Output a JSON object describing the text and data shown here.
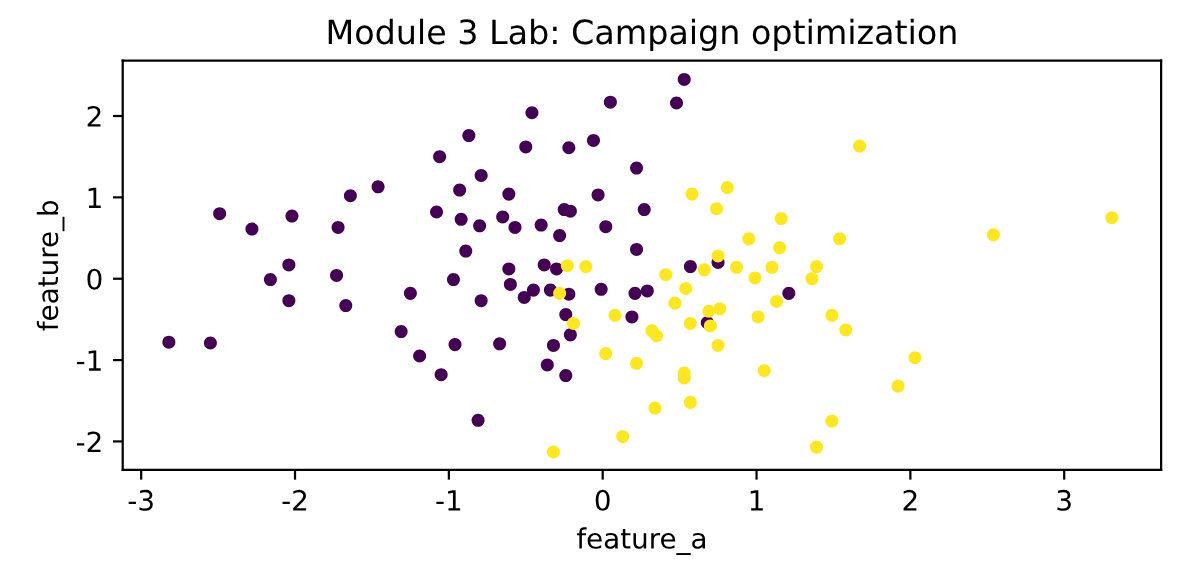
{
  "chart_data": {
    "type": "scatter",
    "title": "Module 3 Lab: Campaign optimization",
    "xlabel": "feature_a",
    "ylabel": "feature_b",
    "xlim": [
      -3.12,
      3.63
    ],
    "ylim": [
      -2.35,
      2.68
    ],
    "xticks": [
      -3,
      -2,
      -1,
      0,
      1,
      2,
      3
    ],
    "yticks": [
      -2,
      -1,
      0,
      1,
      2
    ],
    "marker": "circle",
    "grid": false,
    "series": [
      {
        "color": "#440154",
        "x": [
          -2.82,
          -2.55,
          -2.49,
          -2.28,
          -2.02,
          -2.16,
          -2.04,
          -2.04,
          -1.72,
          -1.64,
          -1.46,
          -1.73,
          -1.67,
          -1.25,
          -1.31,
          -1.19,
          -1.05,
          -0.96,
          -0.81,
          -0.67,
          -0.87,
          -1.06,
          -0.79,
          -0.93,
          -1.08,
          -0.92,
          -0.8,
          -0.89,
          -0.97,
          -0.79,
          0.53,
          0.05,
          0.48,
          -0.46,
          -0.5,
          -0.22,
          -0.06,
          0.22,
          -0.61,
          -0.03,
          -0.65,
          -0.57,
          -0.4,
          -0.25,
          -0.21,
          0.27,
          0.02,
          -0.28,
          0.22,
          -0.61,
          -0.6,
          -0.38,
          -0.3,
          -0.51,
          -0.45,
          -0.34,
          -0.22,
          -0.01,
          0.21,
          0.29,
          0.57,
          0.75,
          1.21,
          -0.24,
          -0.21,
          0.19,
          0.68,
          -0.32,
          -0.36,
          -0.24
        ],
        "values": [
          -0.78,
          -0.79,
          0.8,
          0.61,
          0.77,
          -0.01,
          0.17,
          -0.27,
          0.63,
          1.02,
          1.13,
          0.04,
          -0.33,
          -0.18,
          -0.65,
          -0.95,
          -1.18,
          -0.81,
          -1.74,
          -0.8,
          1.76,
          1.5,
          1.27,
          1.09,
          0.82,
          0.73,
          0.65,
          0.34,
          -0.01,
          -0.27,
          2.45,
          2.17,
          2.16,
          2.04,
          1.62,
          1.61,
          1.7,
          1.36,
          1.04,
          1.03,
          0.76,
          0.63,
          0.66,
          0.85,
          0.83,
          0.85,
          0.64,
          0.53,
          0.36,
          0.12,
          -0.07,
          0.17,
          0.12,
          -0.23,
          -0.14,
          -0.14,
          -0.19,
          -0.13,
          -0.18,
          -0.15,
          0.15,
          0.2,
          -0.18,
          -0.44,
          -0.69,
          -0.47,
          -0.54,
          -0.82,
          -1.06,
          -1.19
        ]
      },
      {
        "color": "#fde725",
        "x": [
          1.67,
          0.58,
          0.81,
          0.74,
          1.16,
          0.95,
          1.15,
          1.54,
          -0.23,
          -0.11,
          0.41,
          0.66,
          0.75,
          0.87,
          0.99,
          1.1,
          1.39,
          1.36,
          0.54,
          -0.28,
          0.47,
          1.13,
          -0.19,
          0.08,
          0.69,
          0.76,
          0.57,
          0.7,
          1.01,
          1.49,
          1.58,
          0.32,
          0.35,
          0.75,
          0.02,
          0.22,
          0.53,
          0.53,
          1.05,
          0.57,
          0.34,
          0.13,
          -0.32,
          1.49,
          1.39,
          2.54,
          3.31,
          2.03,
          1.92
        ],
        "values": [
          1.63,
          1.04,
          1.12,
          0.86,
          0.74,
          0.49,
          0.38,
          0.49,
          0.16,
          0.15,
          0.05,
          0.11,
          0.28,
          0.14,
          0.01,
          0.14,
          0.15,
          0.0,
          -0.12,
          -0.18,
          -0.3,
          -0.28,
          -0.55,
          -0.45,
          -0.4,
          -0.37,
          -0.55,
          -0.58,
          -0.47,
          -0.45,
          -0.63,
          -0.64,
          -0.7,
          -0.82,
          -0.92,
          -1.04,
          -1.16,
          -1.22,
          -1.13,
          -1.52,
          -1.59,
          -1.94,
          -2.13,
          -1.75,
          -2.07,
          0.54,
          0.75,
          -0.97,
          -1.32
        ]
      }
    ]
  }
}
